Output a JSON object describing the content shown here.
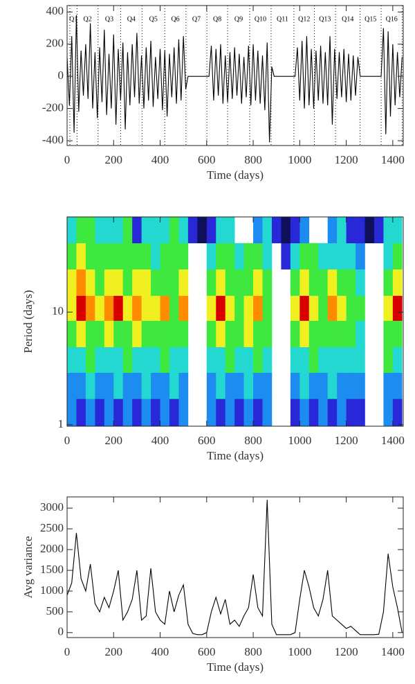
{
  "chart_data": [
    {
      "type": "line",
      "xlabel": "Time (days)",
      "color": "#000000",
      "xlim": [
        0,
        1445
      ],
      "ylim": [
        -430,
        440
      ],
      "xticks": [
        0,
        200,
        400,
        600,
        800,
        1000,
        1200,
        1400
      ],
      "yticks": [
        -400,
        -200,
        0,
        200,
        400
      ],
      "quarters": [
        "Q1",
        "Q2",
        "Q3",
        "Q4",
        "Q5",
        "Q6",
        "Q7",
        "Q8",
        "Q9",
        "Q10",
        "Q11",
        "Q12",
        "Q13",
        "Q14",
        "Q15",
        "Q16"
      ],
      "quarter_boundaries": [
        12,
        43,
        133,
        230,
        322,
        420,
        511,
        601,
        690,
        785,
        877,
        975,
        1063,
        1154,
        1259,
        1350,
        1440
      ],
      "x": [
        0,
        10,
        20,
        30,
        40,
        50,
        60,
        70,
        80,
        90,
        100,
        110,
        120,
        130,
        140,
        150,
        160,
        170,
        180,
        190,
        200,
        210,
        220,
        230,
        240,
        250,
        260,
        270,
        280,
        290,
        300,
        310,
        320,
        330,
        340,
        350,
        360,
        370,
        380,
        390,
        400,
        410,
        420,
        430,
        440,
        450,
        460,
        470,
        480,
        490,
        500,
        510,
        520,
        530,
        540,
        550,
        560,
        570,
        580,
        590,
        600,
        610,
        620,
        630,
        640,
        650,
        660,
        670,
        680,
        690,
        700,
        710,
        720,
        730,
        740,
        750,
        760,
        770,
        780,
        790,
        800,
        810,
        820,
        830,
        840,
        850,
        860,
        870,
        880,
        890,
        900,
        910,
        920,
        930,
        940,
        950,
        960,
        970,
        980,
        990,
        1000,
        1010,
        1020,
        1030,
        1040,
        1050,
        1060,
        1070,
        1080,
        1090,
        1100,
        1110,
        1120,
        1130,
        1140,
        1150,
        1160,
        1170,
        1180,
        1190,
        1200,
        1210,
        1220,
        1230,
        1240,
        1250,
        1260,
        1270,
        1280,
        1290,
        1300,
        1310,
        1320,
        1330,
        1340,
        1350,
        1360,
        1370,
        1380,
        1390,
        1400,
        1410,
        1420,
        1430,
        1440
      ],
      "values": [
        120,
        -180,
        250,
        -350,
        380,
        -220,
        160,
        -120,
        200,
        -140,
        330,
        -200,
        150,
        -260,
        180,
        -160,
        290,
        -240,
        140,
        -200,
        260,
        -300,
        170,
        -150,
        210,
        -330,
        150,
        -180,
        200,
        -130,
        270,
        -170,
        130,
        -200,
        180,
        -150,
        220,
        -190,
        120,
        -140,
        170,
        -210,
        160,
        -250,
        140,
        -130,
        180,
        -170,
        230,
        -150,
        250,
        -80,
        0,
        0,
        0,
        0,
        0,
        0,
        0,
        0,
        0,
        0,
        190,
        -150,
        170,
        -120,
        200,
        -170,
        130,
        -160,
        150,
        -140,
        180,
        -120,
        140,
        -170,
        120,
        -130,
        190,
        -180,
        200,
        -150,
        160,
        -170,
        130,
        -210,
        210,
        -410,
        60,
        0,
        0,
        0,
        0,
        0,
        0,
        0,
        0,
        0,
        0,
        180,
        -150,
        220,
        -200,
        250,
        -180,
        170,
        -200,
        160,
        -150,
        190,
        -170,
        150,
        -180,
        250,
        -300,
        170,
        -140,
        150,
        -130,
        170,
        -160,
        140,
        -150,
        130,
        -120,
        120,
        0,
        0,
        0,
        0,
        0,
        0,
        0,
        0,
        0,
        0,
        300,
        -360,
        280,
        -250,
        200,
        -180,
        150,
        -130,
        120
      ]
    },
    {
      "type": "heatmap",
      "xlabel": "Time (days)",
      "ylabel": "Period (days)",
      "log_y": true,
      "xlim": [
        0,
        1445
      ],
      "ylim": [
        0.97,
        70
      ],
      "xticks": [
        0,
        200,
        400,
        600,
        800,
        1000,
        1200,
        1400
      ],
      "yticks": [
        1,
        10
      ],
      "level_colors": [
        "#10105a",
        "#2828d8",
        "#1c8cf0",
        "#22d8d0",
        "#3ee83e",
        "#f0f020",
        "#ff8c00",
        "#d80000"
      ],
      "x_edges": [
        0,
        40,
        80,
        120,
        160,
        200,
        240,
        280,
        320,
        360,
        400,
        440,
        480,
        520,
        560,
        600,
        640,
        680,
        720,
        760,
        800,
        840,
        880,
        920,
        960,
        1000,
        1040,
        1080,
        1120,
        1160,
        1200,
        1240,
        1280,
        1320,
        1360,
        1400,
        1440
      ],
      "y_edges": [
        0.97,
        1.7,
        2.9,
        4.9,
        8.4,
        14,
        24,
        41,
        70
      ],
      "z": [
        [
          2,
          1,
          2,
          1,
          2,
          1,
          2,
          1,
          2,
          1,
          2,
          1,
          2,
          null,
          null,
          2,
          1,
          2,
          1,
          2,
          1,
          2,
          null,
          null,
          1,
          2,
          1,
          2,
          1,
          2,
          1,
          1,
          null,
          null,
          2,
          1
        ],
        [
          2,
          2,
          3,
          2,
          2,
          3,
          2,
          2,
          3,
          2,
          2,
          3,
          2,
          null,
          null,
          2,
          3,
          2,
          2,
          3,
          2,
          2,
          null,
          null,
          2,
          3,
          2,
          2,
          3,
          2,
          2,
          2,
          null,
          null,
          2,
          2
        ],
        [
          3,
          3,
          4,
          3,
          3,
          3,
          4,
          3,
          3,
          3,
          4,
          3,
          3,
          null,
          null,
          3,
          3,
          4,
          3,
          3,
          4,
          3,
          null,
          null,
          3,
          3,
          4,
          3,
          3,
          3,
          3,
          3,
          null,
          null,
          4,
          3
        ],
        [
          4,
          5,
          4,
          4,
          5,
          4,
          4,
          5,
          4,
          4,
          4,
          4,
          4,
          null,
          null,
          4,
          5,
          4,
          4,
          5,
          4,
          4,
          null,
          null,
          4,
          5,
          4,
          4,
          4,
          4,
          4,
          3,
          null,
          null,
          4,
          4
        ],
        [
          5,
          7,
          6,
          5,
          6,
          7,
          5,
          6,
          5,
          5,
          6,
          4,
          6,
          null,
          null,
          5,
          7,
          5,
          4,
          5,
          6,
          4,
          null,
          null,
          5,
          7,
          5,
          4,
          6,
          5,
          4,
          4,
          null,
          null,
          5,
          7
        ],
        [
          5,
          6,
          5,
          4,
          5,
          5,
          4,
          5,
          5,
          4,
          4,
          4,
          5,
          null,
          null,
          4,
          5,
          4,
          4,
          4,
          5,
          4,
          null,
          null,
          4,
          5,
          4,
          4,
          5,
          4,
          4,
          3,
          null,
          null,
          4,
          5
        ],
        [
          4,
          5,
          4,
          4,
          4,
          4,
          4,
          4,
          4,
          3,
          4,
          4,
          4,
          null,
          null,
          3,
          4,
          4,
          3,
          4,
          4,
          3,
          null,
          1,
          3,
          4,
          4,
          3,
          3,
          3,
          3,
          2,
          null,
          null,
          3,
          4
        ],
        [
          3,
          4,
          4,
          3,
          3,
          3,
          4,
          1,
          3,
          3,
          3,
          4,
          3,
          1,
          0,
          1,
          3,
          3,
          null,
          null,
          2,
          3,
          1,
          0,
          1,
          2,
          null,
          null,
          2,
          3,
          1,
          1,
          0,
          1,
          3,
          3
        ]
      ]
    },
    {
      "type": "line",
      "xlabel": "Time (days)",
      "ylabel": "Avg variance",
      "color": "#000000",
      "xlim": [
        0,
        1445
      ],
      "ylim": [
        -120,
        3270
      ],
      "xticks": [
        0,
        200,
        400,
        600,
        800,
        1000,
        1200,
        1400
      ],
      "yticks": [
        0,
        500,
        1000,
        1500,
        2000,
        2500,
        3000
      ],
      "x": [
        0,
        20,
        40,
        60,
        80,
        100,
        120,
        140,
        160,
        180,
        200,
        220,
        240,
        260,
        280,
        300,
        320,
        340,
        360,
        380,
        400,
        420,
        440,
        460,
        480,
        500,
        520,
        540,
        560,
        580,
        600,
        620,
        640,
        660,
        680,
        700,
        720,
        740,
        760,
        780,
        800,
        820,
        840,
        860,
        880,
        900,
        920,
        940,
        960,
        980,
        1000,
        1020,
        1040,
        1060,
        1080,
        1100,
        1120,
        1140,
        1160,
        1180,
        1200,
        1220,
        1240,
        1260,
        1280,
        1300,
        1320,
        1340,
        1360,
        1380,
        1400,
        1420,
        1440
      ],
      "values": [
        900,
        1200,
        2400,
        1300,
        1000,
        1650,
        700,
        500,
        850,
        600,
        1000,
        1500,
        300,
        500,
        800,
        1500,
        300,
        400,
        1550,
        500,
        300,
        200,
        1000,
        500,
        900,
        1150,
        200,
        -20,
        -50,
        -50,
        0,
        500,
        850,
        450,
        800,
        200,
        300,
        150,
        400,
        600,
        1400,
        600,
        400,
        3200,
        200,
        -50,
        -50,
        -50,
        -50,
        0,
        800,
        1500,
        1100,
        600,
        400,
        800,
        1500,
        400,
        300,
        200,
        100,
        150,
        50,
        -50,
        -50,
        -50,
        -50,
        -40,
        500,
        1900,
        1100,
        600,
        0
      ]
    }
  ]
}
